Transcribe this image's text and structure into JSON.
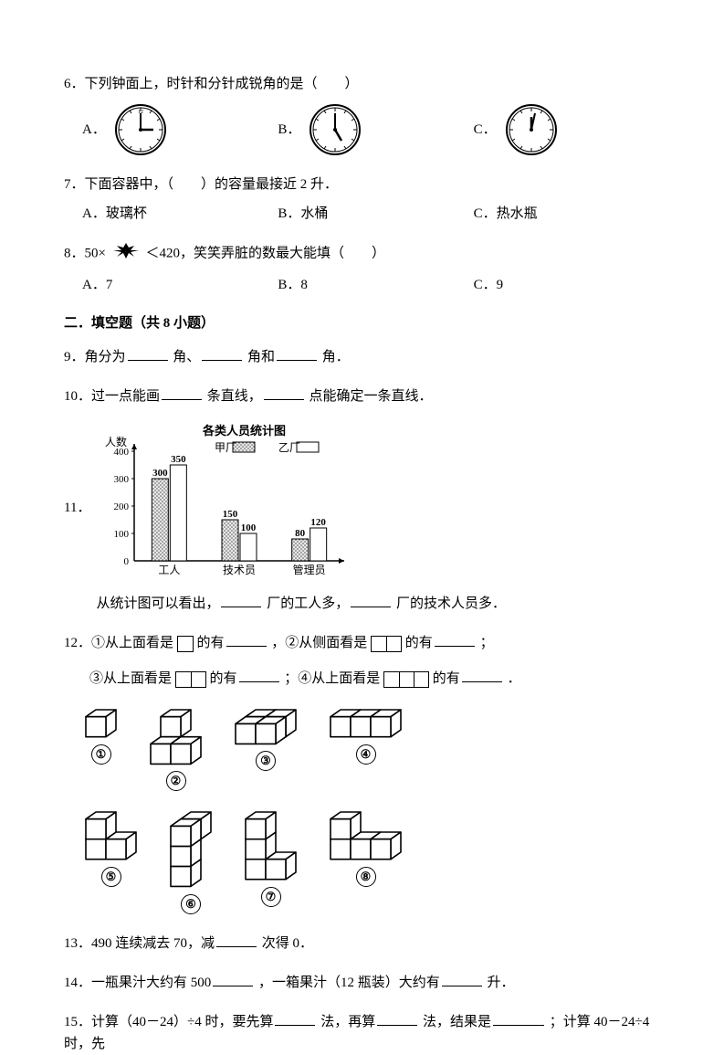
{
  "q6": {
    "text": "6．下列钟面上，时针和分针成锐角的是（　　）",
    "A": "A．",
    "B": "B．",
    "C": "C．",
    "clocks": {
      "A": {
        "h": 3,
        "m": 0
      },
      "B": {
        "h": 5,
        "m": 0
      },
      "C": {
        "h": 12,
        "m": 5
      }
    }
  },
  "q7": {
    "text": "7．下面容器中，（　　）的容量最接近 2 升．",
    "A": "A．玻璃杯",
    "B": "B．水桶",
    "C": "C．热水瓶"
  },
  "q8": {
    "pre": "8．50×",
    "post": "＜420，笑笑弄脏的数最大能填（　　）",
    "A": "A．7",
    "B": "B．8",
    "C": "C．9"
  },
  "section2": "二．填空题（共 8 小题）",
  "q9": {
    "a": "9．角分为",
    "b": "角、",
    "c": "角和",
    "d": "角．"
  },
  "q10": {
    "a": "10．过一点能画",
    "b": "条直线，",
    "c": "点能确定一条直线．"
  },
  "q11": {
    "label": "11．",
    "title": "各类人员统计图",
    "ylabel": "人数",
    "legend": [
      {
        "label": "甲厂",
        "fill": "hatch"
      },
      {
        "label": "乙厂",
        "fill": "none"
      }
    ],
    "categories": [
      "工人",
      "技术员",
      "管理员"
    ],
    "series": [
      [
        300,
        150,
        80
      ],
      [
        350,
        100,
        120
      ]
    ],
    "value_labels": [
      [
        "300",
        "350"
      ],
      [
        "150",
        "100"
      ],
      [
        "80",
        "120"
      ]
    ],
    "ylim": [
      0,
      400
    ],
    "ytick_step": 100,
    "bar_colors": [
      "#bdbdbd",
      "#ffffff"
    ],
    "axis_color": "#000",
    "text_color": "#000",
    "caption_a": "从统计图可以看出，",
    "caption_b": "厂的工人多，",
    "caption_c": "厂的技术人员多．"
  },
  "q12": {
    "l1a": "12．①从上面看是",
    "l1b": "的有",
    "l1c": "，②从侧面看是",
    "l1d": "的有",
    "l1e": "；",
    "l2a": "③从上面看是",
    "l2b": "的有",
    "l2c": "；④从上面看是",
    "l2d": "的有",
    "l2e": "．",
    "labels": [
      "①",
      "②",
      "③",
      "④",
      "⑤",
      "⑥",
      "⑦",
      "⑧"
    ]
  },
  "q13": {
    "a": "13．490 连续减去 70，减",
    "b": "次得 0．"
  },
  "q14": {
    "a": "14．一瓶果汁大约有 500",
    "b": "，一箱果汁（12 瓶装）大约有",
    "c": "升．"
  },
  "q15": {
    "a": "15．计算（40－24）÷4 时，要先算",
    "b": "法，再算",
    "c": "法，结果是",
    "d": "；计算 40－24÷4 时，先"
  }
}
